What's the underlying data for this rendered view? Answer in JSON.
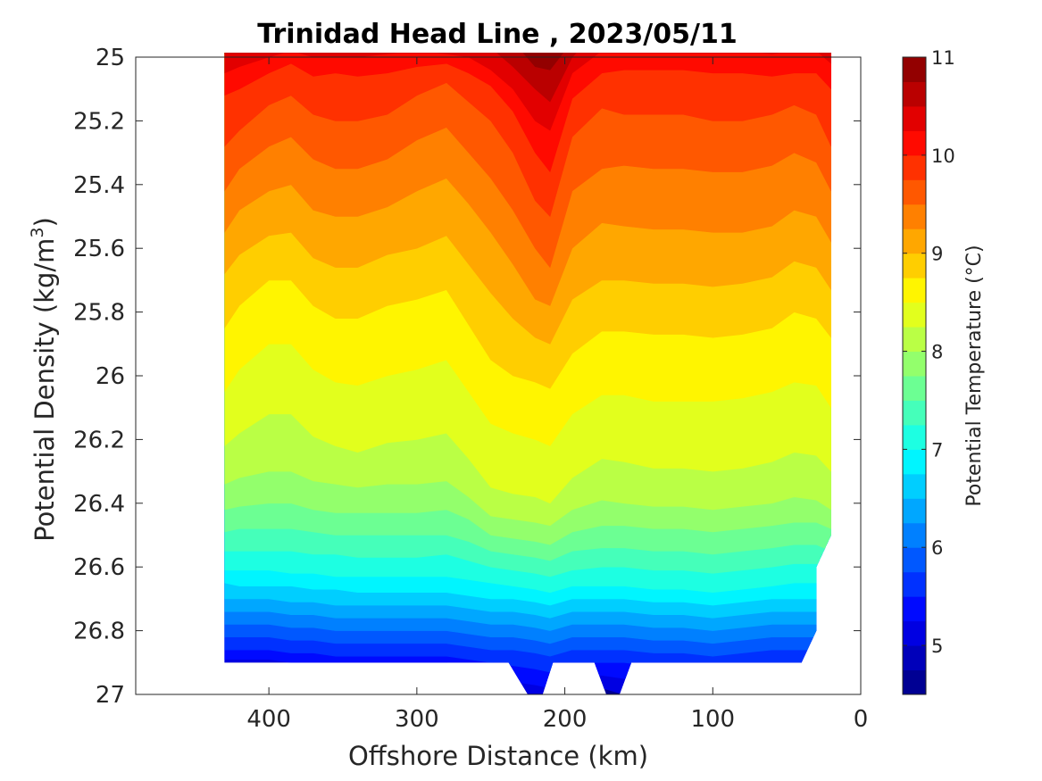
{
  "chart_data": {
    "type": "filled-contour",
    "title": "Trinidad Head Line , 2023/05/11",
    "xlabel": "Offshore Distance (km)",
    "ylabel_main": "Potential Density (kg/m",
    "ylabel_sup": "3",
    "ylabel_end": ")",
    "x_axis": {
      "reversed": true,
      "lim": [
        0,
        490
      ],
      "ticks": [
        400,
        300,
        200,
        100,
        0
      ],
      "tick_labels": [
        "400",
        "300",
        "200",
        "100",
        "0"
      ]
    },
    "y_axis": {
      "reversed": true,
      "lim": [
        25,
        27
      ],
      "ticks": [
        25,
        25.2,
        25.4,
        25.6,
        25.8,
        26,
        26.2,
        26.4,
        26.6,
        26.8,
        27
      ],
      "tick_labels": [
        "25",
        "25.2",
        "25.4",
        "25.6",
        "25.8",
        "26",
        "26.2",
        "26.4",
        "26.6",
        "26.8",
        "27"
      ]
    },
    "colorbar": {
      "label": "Potential Temperature (°C)",
      "range": [
        4.5,
        11
      ],
      "ticks": [
        5,
        6,
        7,
        8,
        9,
        10,
        11
      ],
      "tick_labels": [
        "5",
        "6",
        "7",
        "8",
        "9",
        "10",
        "11"
      ],
      "step": 0.25,
      "colormap": "jet"
    },
    "stations_km": [
      430,
      420,
      400,
      385,
      370,
      355,
      340,
      320,
      300,
      280,
      265,
      250,
      235,
      220,
      210,
      195,
      175,
      160,
      140,
      120,
      100,
      80,
      60,
      45,
      30,
      20
    ],
    "data_extent": {
      "x_range_km": [
        20,
        430
      ],
      "max_density": 26.9,
      "notches": [
        {
          "x_km": [
            238,
            225,
            215,
            208
          ],
          "max_density": 27.0
        },
        {
          "x_km": [
            180,
            172,
            163,
            155
          ],
          "max_density": 27.0
        }
      ],
      "right_edge": [
        {
          "x_km": 20,
          "density": 26.5
        },
        {
          "x_km": 30,
          "density": 26.6
        },
        {
          "x_km": 30,
          "density": 26.8
        },
        {
          "x_km": 40,
          "density": 26.9
        }
      ]
    },
    "isotherm_levels": [
      {
        "temp": 10.75,
        "density": [
          24.9,
          24.9,
          24.9,
          24.9,
          24.9,
          24.9,
          24.9,
          24.9,
          24.9,
          24.9,
          24.9,
          24.9,
          24.95,
          25.03,
          25.04,
          24.95,
          24.9,
          24.9,
          24.9,
          24.9,
          24.9,
          24.9,
          24.9,
          24.9,
          24.9,
          24.9
        ]
      },
      {
        "temp": 10.5,
        "density": [
          24.9,
          24.9,
          24.9,
          24.9,
          24.9,
          24.9,
          24.9,
          24.9,
          24.9,
          24.9,
          24.9,
          24.97,
          25.03,
          25.1,
          25.14,
          25.0,
          24.9,
          24.9,
          24.9,
          24.9,
          24.9,
          24.9,
          24.9,
          24.9,
          24.9,
          24.9
        ]
      },
      {
        "temp": 10.25,
        "density": [
          25.05,
          25.03,
          25.0,
          24.98,
          25.0,
          25.0,
          25.0,
          24.99,
          24.98,
          24.99,
          25.0,
          25.04,
          25.1,
          25.2,
          25.23,
          25.05,
          24.98,
          24.97,
          24.97,
          24.97,
          24.98,
          24.98,
          24.99,
          24.98,
          24.98,
          25.02
        ]
      },
      {
        "temp": 10.0,
        "density": [
          25.12,
          25.1,
          25.05,
          25.02,
          25.06,
          25.05,
          25.06,
          25.05,
          25.03,
          25.02,
          25.05,
          25.09,
          25.17,
          25.3,
          25.36,
          25.13,
          25.05,
          25.04,
          25.04,
          25.04,
          25.05,
          25.05,
          25.06,
          25.05,
          25.05,
          25.1
        ]
      },
      {
        "temp": 9.75,
        "density": [
          25.28,
          25.23,
          25.15,
          25.12,
          25.18,
          25.2,
          25.2,
          25.18,
          25.12,
          25.08,
          25.14,
          25.2,
          25.3,
          25.45,
          25.5,
          25.25,
          25.16,
          25.18,
          25.18,
          25.18,
          25.2,
          25.2,
          25.18,
          25.15,
          25.18,
          25.28
        ]
      },
      {
        "temp": 9.5,
        "density": [
          25.42,
          25.35,
          25.28,
          25.25,
          25.32,
          25.35,
          25.35,
          25.32,
          25.26,
          25.22,
          25.3,
          25.38,
          25.48,
          25.6,
          25.66,
          25.42,
          25.35,
          25.34,
          25.35,
          25.35,
          25.36,
          25.36,
          25.34,
          25.3,
          25.33,
          25.42
        ]
      },
      {
        "temp": 9.25,
        "density": [
          25.55,
          25.48,
          25.42,
          25.4,
          25.48,
          25.5,
          25.5,
          25.47,
          25.42,
          25.38,
          25.46,
          25.55,
          25.65,
          25.76,
          25.78,
          25.6,
          25.52,
          25.53,
          25.54,
          25.54,
          25.55,
          25.55,
          25.53,
          25.48,
          25.5,
          25.58
        ]
      },
      {
        "temp": 9.0,
        "density": [
          25.68,
          25.62,
          25.56,
          25.55,
          25.63,
          25.66,
          25.66,
          25.62,
          25.6,
          25.56,
          25.65,
          25.74,
          25.82,
          25.88,
          25.9,
          25.76,
          25.7,
          25.7,
          25.71,
          25.71,
          25.72,
          25.71,
          25.69,
          25.64,
          25.66,
          25.73
        ]
      },
      {
        "temp": 8.75,
        "density": [
          25.85,
          25.78,
          25.7,
          25.7,
          25.78,
          25.82,
          25.82,
          25.78,
          25.76,
          25.73,
          25.84,
          25.95,
          26.0,
          26.02,
          26.04,
          25.93,
          25.86,
          25.86,
          25.87,
          25.87,
          25.88,
          25.87,
          25.85,
          25.8,
          25.82,
          25.88
        ]
      },
      {
        "temp": 8.5,
        "density": [
          26.05,
          25.98,
          25.9,
          25.9,
          25.98,
          26.02,
          26.03,
          26.0,
          25.98,
          25.95,
          26.05,
          26.15,
          26.18,
          26.2,
          26.22,
          26.12,
          26.06,
          26.06,
          26.08,
          26.08,
          26.08,
          26.07,
          26.05,
          26.02,
          26.03,
          26.1
        ]
      },
      {
        "temp": 8.25,
        "density": [
          26.22,
          26.18,
          26.12,
          26.12,
          26.19,
          26.22,
          26.24,
          26.21,
          26.2,
          26.18,
          26.26,
          26.35,
          26.37,
          26.38,
          26.4,
          26.32,
          26.26,
          26.27,
          26.29,
          26.29,
          26.3,
          26.29,
          26.27,
          26.24,
          26.25,
          26.3
        ]
      },
      {
        "temp": 8.0,
        "density": [
          26.34,
          26.32,
          26.3,
          26.3,
          26.33,
          26.34,
          26.35,
          26.34,
          26.34,
          26.33,
          26.38,
          26.44,
          26.45,
          26.46,
          26.47,
          26.42,
          26.39,
          26.4,
          26.41,
          26.41,
          26.42,
          26.41,
          26.4,
          26.38,
          26.39,
          26.42
        ]
      },
      {
        "temp": 7.75,
        "density": [
          26.42,
          26.41,
          26.4,
          26.4,
          26.42,
          26.43,
          26.43,
          26.43,
          26.43,
          26.42,
          26.45,
          26.5,
          26.51,
          26.52,
          26.53,
          26.49,
          26.47,
          26.47,
          26.48,
          26.48,
          26.49,
          26.48,
          26.47,
          26.46,
          26.46,
          26.48
        ]
      },
      {
        "temp": 7.5,
        "density": [
          26.49,
          26.48,
          26.48,
          26.48,
          26.49,
          26.5,
          26.5,
          26.5,
          26.5,
          26.5,
          26.52,
          26.55,
          26.56,
          26.57,
          26.58,
          26.55,
          26.54,
          26.54,
          26.55,
          26.55,
          26.56,
          26.55,
          26.54,
          26.53,
          26.53,
          26.55
        ]
      },
      {
        "temp": 7.25,
        "density": [
          26.55,
          26.55,
          26.55,
          26.55,
          26.56,
          26.56,
          26.57,
          26.57,
          26.57,
          26.56,
          26.58,
          26.6,
          26.61,
          26.62,
          26.63,
          26.61,
          26.6,
          26.6,
          26.61,
          26.61,
          26.62,
          26.61,
          26.6,
          26.59,
          26.59,
          26.6
        ]
      },
      {
        "temp": 7.0,
        "density": [
          26.61,
          26.61,
          26.61,
          26.62,
          26.62,
          26.63,
          26.63,
          26.63,
          26.63,
          26.63,
          26.64,
          26.65,
          26.66,
          26.67,
          26.68,
          26.66,
          26.66,
          26.66,
          26.67,
          26.67,
          26.68,
          26.67,
          26.66,
          26.65,
          26.65,
          26.66
        ]
      },
      {
        "temp": 6.75,
        "density": [
          26.65,
          26.66,
          26.66,
          26.66,
          26.67,
          26.67,
          26.68,
          26.68,
          26.68,
          26.68,
          26.69,
          26.7,
          26.7,
          26.71,
          26.72,
          26.7,
          26.7,
          26.7,
          26.71,
          26.71,
          26.72,
          26.71,
          26.7,
          26.7,
          26.7,
          26.71
        ]
      },
      {
        "temp": 6.5,
        "density": [
          26.7,
          26.7,
          26.7,
          26.71,
          26.71,
          26.72,
          26.72,
          26.72,
          26.72,
          26.72,
          26.73,
          26.74,
          26.74,
          26.75,
          26.76,
          26.74,
          26.74,
          26.74,
          26.75,
          26.75,
          26.76,
          26.75,
          26.74,
          26.74,
          26.74,
          26.75
        ]
      },
      {
        "temp": 6.25,
        "density": [
          26.74,
          26.74,
          26.74,
          26.75,
          26.75,
          26.76,
          26.76,
          26.76,
          26.76,
          26.76,
          26.77,
          26.78,
          26.78,
          26.79,
          26.8,
          26.78,
          26.78,
          26.78,
          26.79,
          26.79,
          26.8,
          26.79,
          26.78,
          26.78,
          26.78,
          26.79
        ]
      },
      {
        "temp": 6.0,
        "density": [
          26.78,
          26.78,
          26.78,
          26.79,
          26.79,
          26.8,
          26.8,
          26.8,
          26.8,
          26.8,
          26.81,
          26.82,
          26.82,
          26.83,
          26.84,
          26.82,
          26.82,
          26.82,
          26.83,
          26.83,
          26.84,
          26.83,
          26.82,
          26.82,
          26.82,
          26.83
        ]
      },
      {
        "temp": 5.75,
        "density": [
          26.82,
          26.82,
          26.82,
          26.83,
          26.83,
          26.84,
          26.84,
          26.84,
          26.84,
          26.84,
          26.85,
          26.86,
          26.86,
          26.87,
          26.88,
          26.86,
          26.86,
          26.86,
          26.87,
          26.87,
          26.88,
          26.87,
          26.86,
          26.86,
          26.86,
          26.87
        ]
      },
      {
        "temp": 5.5,
        "density": [
          26.86,
          26.86,
          26.86,
          26.87,
          26.87,
          26.88,
          26.88,
          26.88,
          26.88,
          26.88,
          26.89,
          26.9,
          26.91,
          26.92,
          26.93,
          26.9,
          26.9,
          26.9,
          26.91,
          26.91,
          26.92,
          26.91,
          26.9,
          26.9,
          26.9,
          26.91
        ]
      },
      {
        "temp": 5.25,
        "density": [
          26.89,
          26.89,
          26.89,
          26.9,
          26.9,
          26.9,
          26.9,
          26.9,
          26.9,
          26.9,
          26.92,
          26.94,
          26.96,
          26.97,
          26.98,
          26.94,
          26.94,
          26.95,
          26.96,
          26.96,
          26.96,
          26.96,
          26.95,
          26.95,
          26.95,
          26.96
        ]
      },
      {
        "temp": 5.0,
        "density": [
          26.92,
          26.92,
          26.92,
          26.92,
          26.92,
          26.92,
          26.92,
          26.92,
          26.92,
          26.92,
          26.95,
          26.98,
          27.0,
          27.02,
          27.02,
          26.98,
          26.98,
          27.0,
          27.0,
          27.0,
          27.0,
          27.0,
          27.0,
          27.0,
          27.0,
          27.0
        ]
      }
    ]
  }
}
